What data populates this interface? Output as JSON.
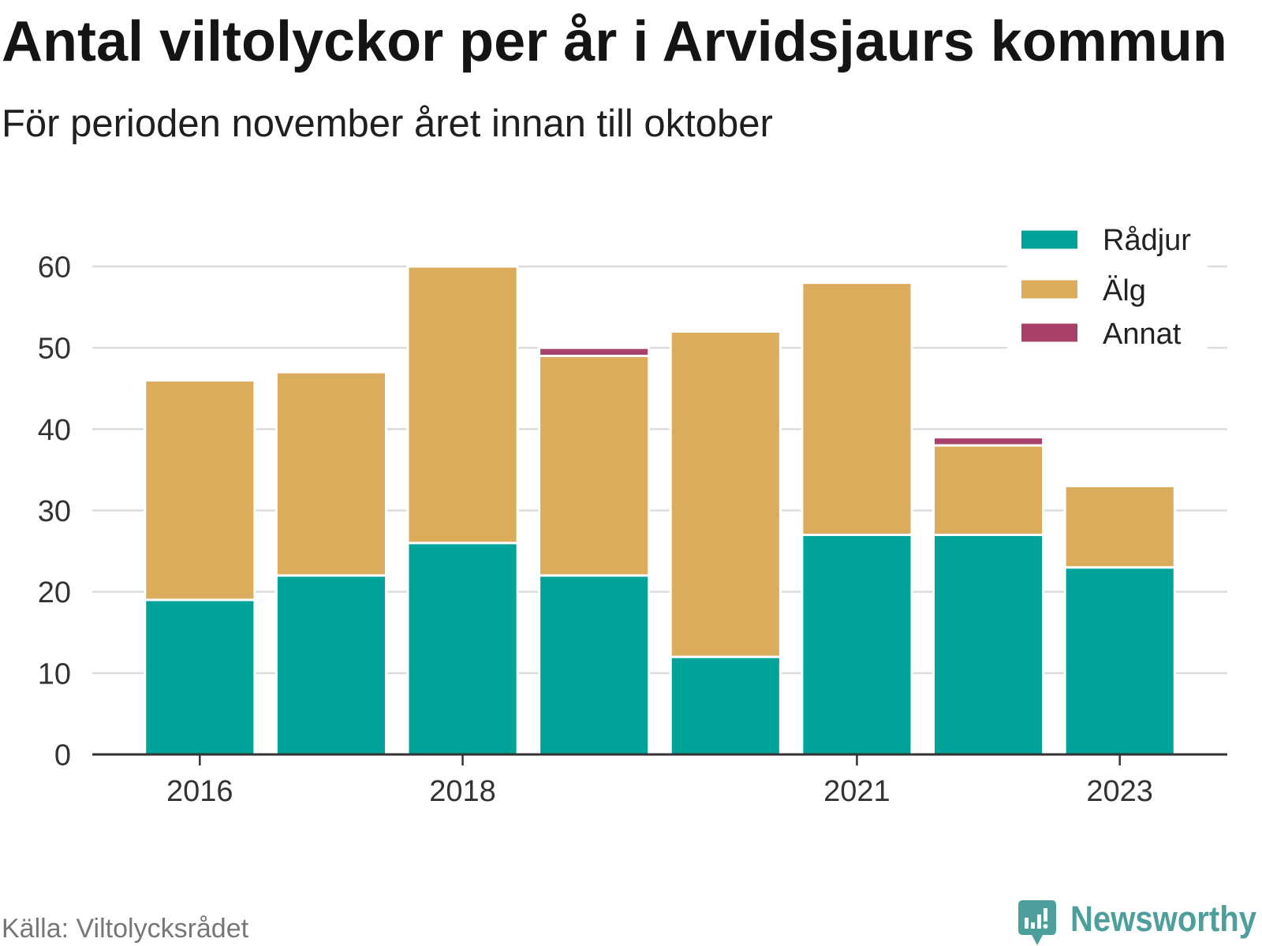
{
  "chart_data": {
    "type": "bar",
    "stacked": true,
    "title": "Antal viltolyckor per år i Arvidsjaurs kommun",
    "subtitle": "För perioden november året innan till oktober",
    "x": [
      2016,
      2017,
      2018,
      2019,
      2020,
      2021,
      2022,
      2023
    ],
    "xticks": [
      2016,
      2018,
      2021,
      2023
    ],
    "yticks": [
      0,
      10,
      20,
      30,
      40,
      50,
      60
    ],
    "ylim": [
      0,
      60
    ],
    "grid": true,
    "legend": "top-right",
    "series": [
      {
        "name": "Rådjur",
        "color": "#00a39a",
        "values": [
          19,
          22,
          26,
          22,
          12,
          27,
          27,
          23
        ]
      },
      {
        "name": "Älg",
        "color": "#dbac5c",
        "values": [
          27,
          25,
          34,
          27,
          40,
          31,
          11,
          10
        ]
      },
      {
        "name": "Annat",
        "color": "#a8416a",
        "values": [
          0,
          0,
          0,
          1,
          0,
          0,
          1,
          0
        ]
      }
    ]
  },
  "source": "Källa: Viltolycksrådet",
  "logo": {
    "text": "Newsworthy",
    "color": "#4e9e9b"
  }
}
